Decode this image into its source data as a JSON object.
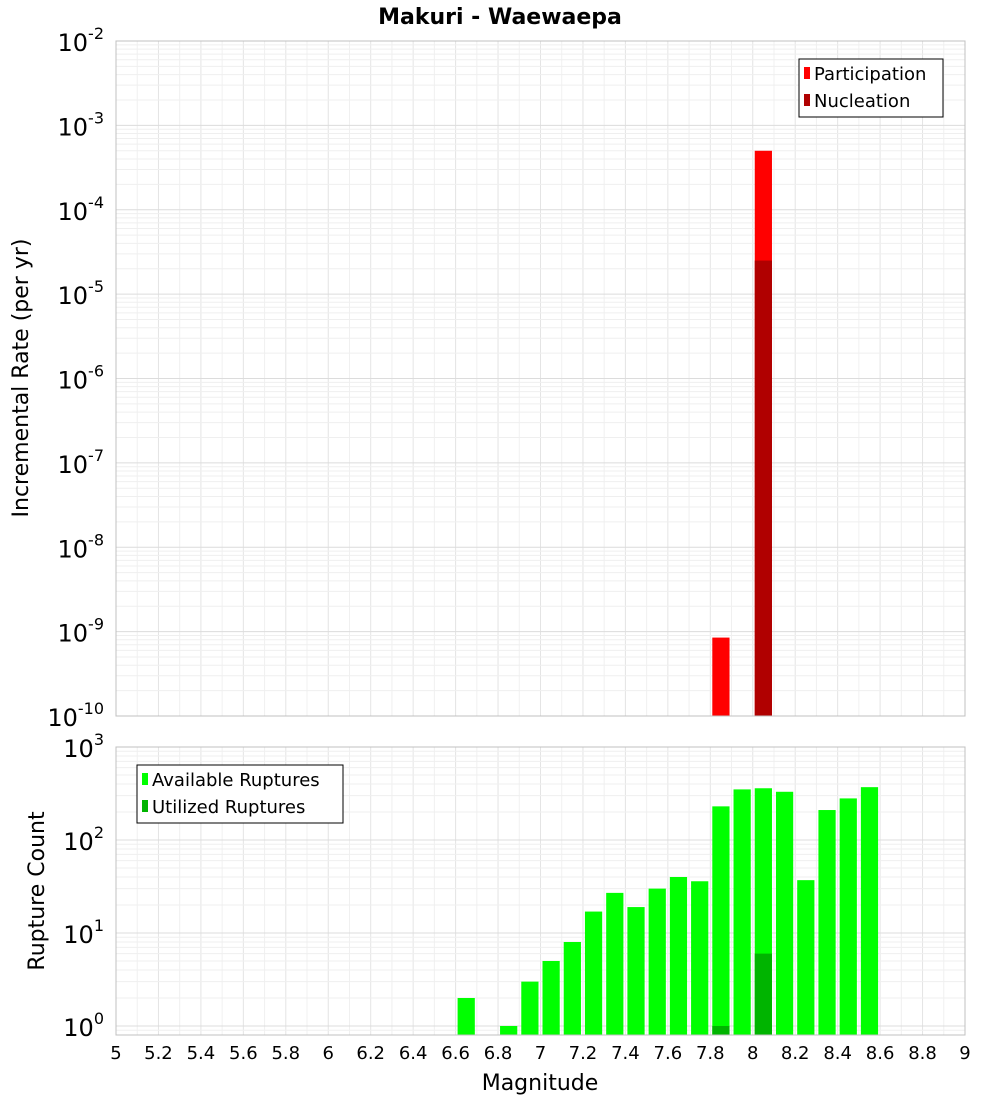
{
  "chart_data": {
    "title": "Makuri - Waewaepa",
    "xlabel": "Magnitude",
    "xlim": [
      5,
      9
    ],
    "x_ticks": [
      "5",
      "5.2",
      "5.4",
      "5.6",
      "5.8",
      "6",
      "6.2",
      "6.4",
      "6.6",
      "6.8",
      "7",
      "7.2",
      "7.4",
      "7.6",
      "7.8",
      "8",
      "8.2",
      "8.4",
      "8.6",
      "8.8",
      "9"
    ],
    "bin_width": 0.1,
    "panels": [
      {
        "type": "bar",
        "ylabel": "Incremental Rate (per yr)",
        "yscale": "log",
        "ylim": [
          1e-10,
          0.01
        ],
        "y_tick_exponents": [
          "-10",
          "-9",
          "-8",
          "-7",
          "-6",
          "-5",
          "-4",
          "-3",
          "-2"
        ],
        "legend_position": "top-right",
        "series": [
          {
            "name": "Participation",
            "color": "#ff0000",
            "x": [
              7.85,
              8.05
            ],
            "values": [
              8.5e-10,
              0.0005
            ]
          },
          {
            "name": "Nucleation",
            "color": "#b00000",
            "x": [
              8.05
            ],
            "values": [
              2.5e-05
            ]
          }
        ]
      },
      {
        "type": "bar",
        "ylabel": "Rupture Count",
        "yscale": "log",
        "ylim": [
          0.8,
          1000
        ],
        "y_tick_exponents": [
          "0",
          "1",
          "2",
          "3"
        ],
        "legend_position": "top-left",
        "series": [
          {
            "name": "Available Ruptures",
            "color": "#00ff00",
            "x": [
              6.65,
              6.85,
              6.95,
              7.05,
              7.15,
              7.25,
              7.35,
              7.45,
              7.55,
              7.65,
              7.75,
              7.85,
              7.95,
              8.05,
              8.15,
              8.25,
              8.35,
              8.45,
              8.55
            ],
            "values": [
              2,
              1,
              3,
              5,
              8,
              17,
              27,
              19,
              30,
              40,
              36,
              230,
              350,
              360,
              330,
              37,
              210,
              280,
              370
            ]
          },
          {
            "name": "Utilized Ruptures",
            "color": "#00b400",
            "x": [
              7.85,
              8.05
            ],
            "values": [
              1,
              6
            ]
          }
        ]
      }
    ]
  }
}
